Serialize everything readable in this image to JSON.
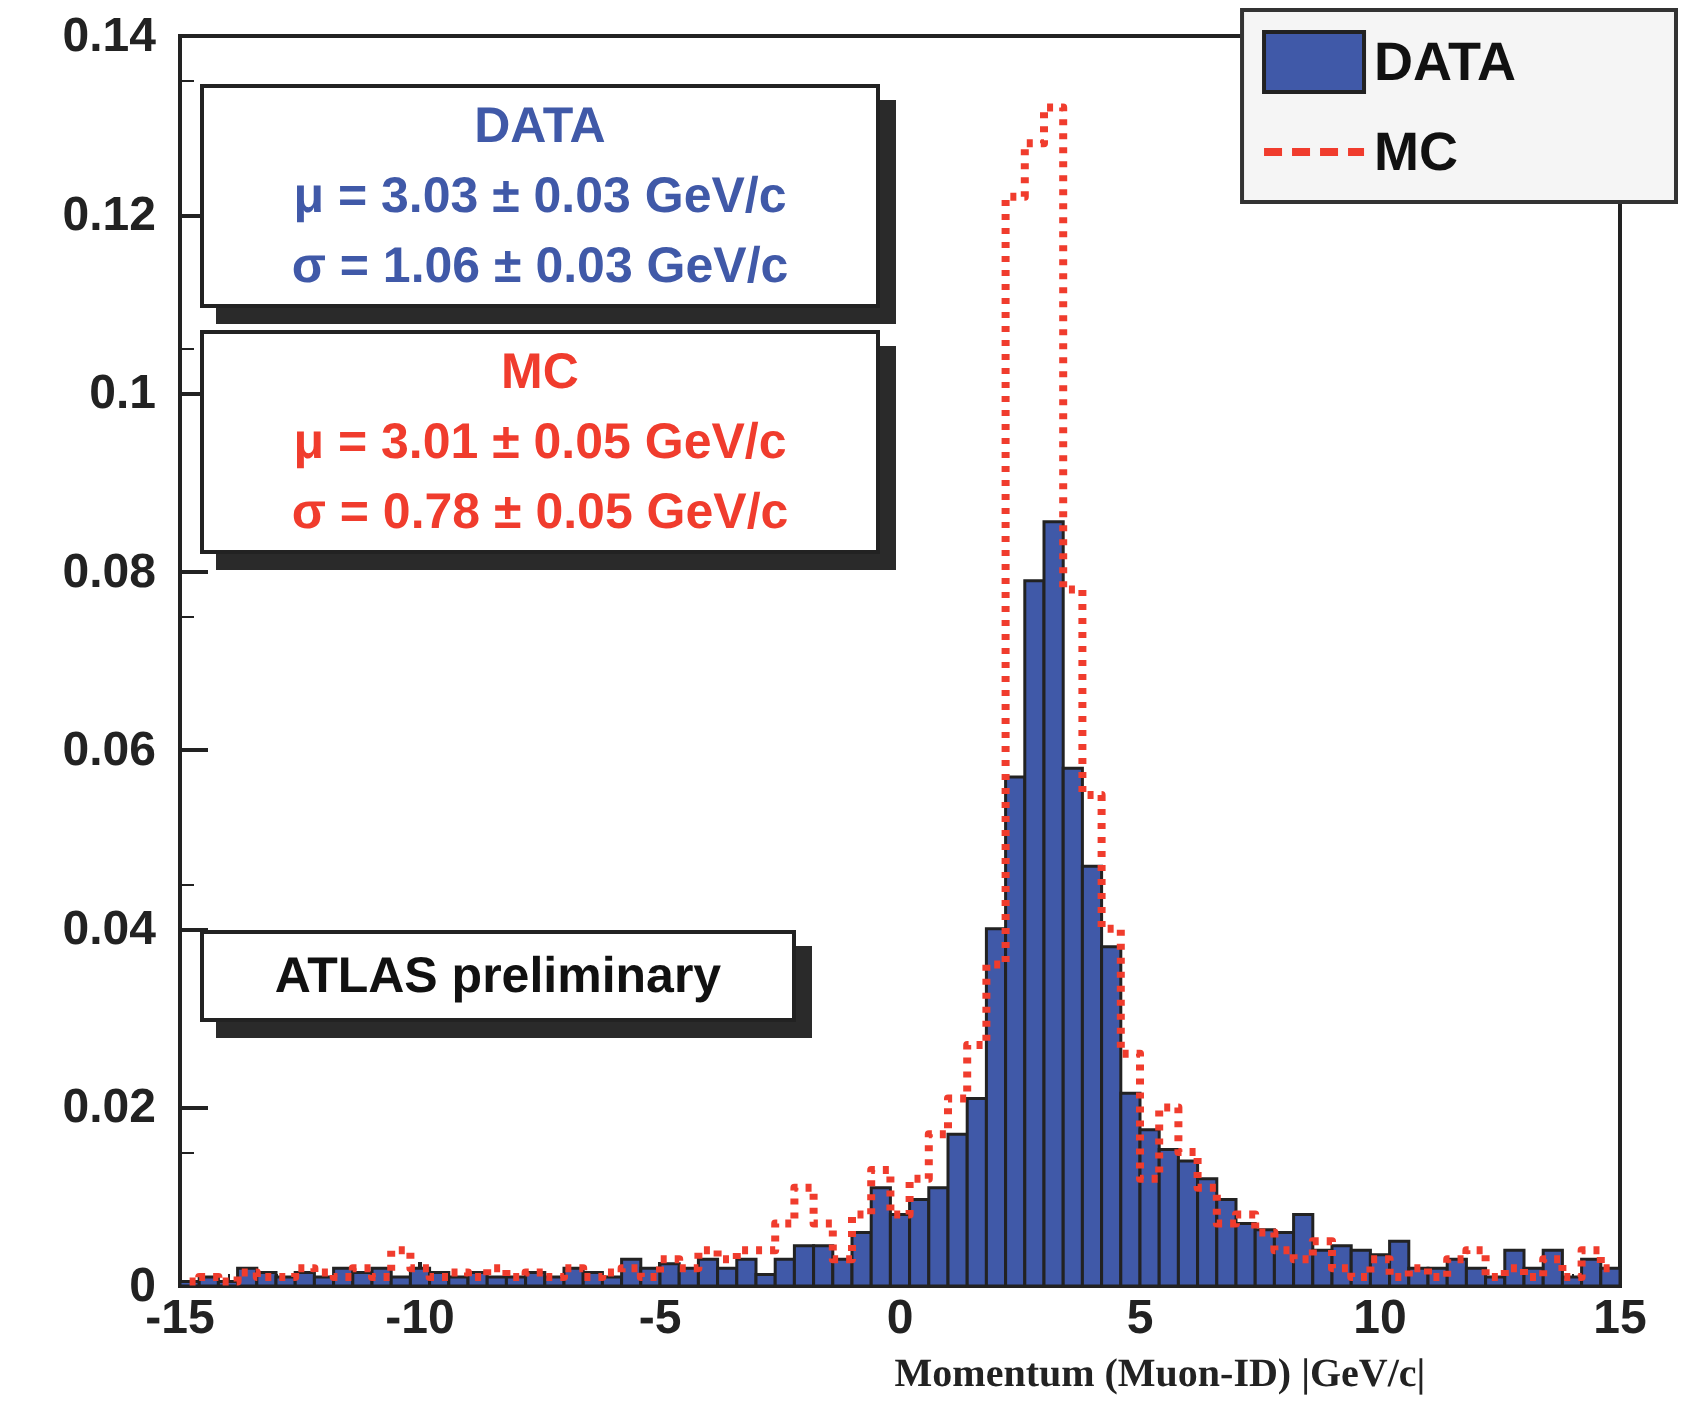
{
  "chart_data": {
    "type": "histogram",
    "xlabel": "Momentum (Muon-ID) |GeV/c|",
    "bins": [
      -15,
      -14.6,
      -14.2,
      -13.8,
      -13.4,
      -13,
      -12.6,
      -12.2,
      -11.8,
      -11.4,
      -11,
      -10.6,
      -10.2,
      -9.8,
      -9.4,
      -9,
      -8.6,
      -8.2,
      -7.8,
      -7.4,
      -7,
      -6.6,
      -6.2,
      -5.8,
      -5.4,
      -5,
      -4.6,
      -4.2,
      -3.8,
      -3.4,
      -3,
      -2.6,
      -2.2,
      -1.8,
      -1.4,
      -1,
      -0.6,
      -0.2,
      0.2,
      0.6,
      1,
      1.4,
      1.8,
      2.2,
      2.6,
      3,
      3.4,
      3.8,
      4.2,
      4.6,
      5,
      5.4,
      5.8,
      6.2,
      6.6,
      7,
      7.4,
      7.8,
      8.2,
      8.6,
      9,
      9.4,
      9.8,
      10.2,
      10.6,
      11,
      11.4,
      11.8,
      12.2,
      12.6,
      13,
      13.4,
      13.8,
      14.2,
      14.6,
      15
    ],
    "series": [
      {
        "name": "DATA",
        "type": "histogram",
        "color": "#4059a8",
        "values": [
          0.0005,
          0.001,
          0.0005,
          0.002,
          0.0015,
          0.001,
          0.0015,
          0.001,
          0.002,
          0.0015,
          0.002,
          0.001,
          0.002,
          0.0015,
          0.001,
          0.0015,
          0.001,
          0.001,
          0.0015,
          0.001,
          0.002,
          0.0015,
          0.001,
          0.003,
          0.002,
          0.0025,
          0.002,
          0.003,
          0.002,
          0.003,
          0.0013,
          0.003,
          0.0045,
          0.0045,
          0.003,
          0.006,
          0.011,
          0.008,
          0.0097,
          0.011,
          0.017,
          0.021,
          0.04,
          0.057,
          0.079,
          0.0856,
          0.058,
          0.047,
          0.038,
          0.0216,
          0.0175,
          0.0153,
          0.014,
          0.012,
          0.0097,
          0.007,
          0.0063,
          0.006,
          0.008,
          0.004,
          0.0045,
          0.004,
          0.0035,
          0.005,
          0.002,
          0.002,
          0.003,
          0.002,
          0.001,
          0.004,
          0.002,
          0.004,
          0.001,
          0.003,
          0.002
        ]
      },
      {
        "name": "MC",
        "type": "step",
        "color": "#f03c2d",
        "x": [
          -14.8,
          -14.4,
          -14,
          -13.6,
          -13.2,
          -12.8,
          -12.4,
          -12,
          -11.6,
          -11.2,
          -10.8,
          -10.4,
          -10,
          -9.6,
          -9.2,
          -8.8,
          -8.4,
          -8,
          -7.6,
          -7.2,
          -6.8,
          -6.4,
          -6,
          -5.6,
          -5.2,
          -4.8,
          -4.4,
          -4,
          -3.6,
          -3.2,
          -2.8,
          -2.4,
          -2,
          -1.6,
          -1.2,
          -0.8,
          -0.4,
          0,
          0.4,
          0.8,
          1.2,
          1.6,
          2,
          2.4,
          2.8,
          3.2,
          3.6,
          4,
          4.4,
          4.8,
          5.2,
          5.6,
          6,
          6.4,
          6.8,
          7.2,
          7.6,
          8,
          8.4,
          8.8,
          9.2,
          9.6,
          10,
          10.4,
          10.8,
          11.2,
          11.6,
          12,
          12.4,
          12.8,
          13.2,
          13.6,
          14,
          14.4,
          14.8
        ],
        "values": [
          0.0005,
          0.001,
          0.0005,
          0.0015,
          0.001,
          0.001,
          0.002,
          0.0015,
          0.001,
          0.002,
          0.001,
          0.004,
          0.002,
          0.001,
          0.0015,
          0.001,
          0.002,
          0.001,
          0.0015,
          0.001,
          0.002,
          0.001,
          0.0015,
          0.002,
          0.001,
          0.003,
          0.002,
          0.004,
          0.003,
          0.004,
          0.004,
          0.007,
          0.011,
          0.007,
          0.003,
          0.008,
          0.013,
          0.008,
          0.012,
          0.017,
          0.021,
          0.027,
          0.036,
          0.122,
          0.128,
          0.132,
          0.078,
          0.055,
          0.04,
          0.026,
          0.012,
          0.02,
          0.015,
          0.011,
          0.007,
          0.008,
          0.006,
          0.004,
          0.003,
          0.005,
          0.002,
          0.001,
          0.003,
          0.001,
          0.002,
          0.001,
          0.003,
          0.004,
          0.001,
          0.002,
          0.001,
          0.003,
          0.001,
          0.004,
          0.002
        ]
      }
    ],
    "xlim": [
      -15,
      15
    ],
    "xticks": [
      -15,
      -10,
      -5,
      0,
      5,
      10,
      15
    ],
    "ylim": [
      0,
      0.14
    ],
    "yticks": [
      0,
      0.02,
      0.04,
      0.06,
      0.08,
      0.1,
      0.12,
      0.14
    ],
    "legend": "top right",
    "line_style": "dotted",
    "grid": false,
    "annotations": [
      "DATA\nμ = 3.03 ± 0.03 GeV/c\nσ = 1.06 ± 0.03 GeV/c",
      "MC\nμ = 3.01 ± 0.05 GeV/c\nσ = 0.78 ± 0.05 GeV/c",
      "ATLAS preliminary"
    ]
  }
}
